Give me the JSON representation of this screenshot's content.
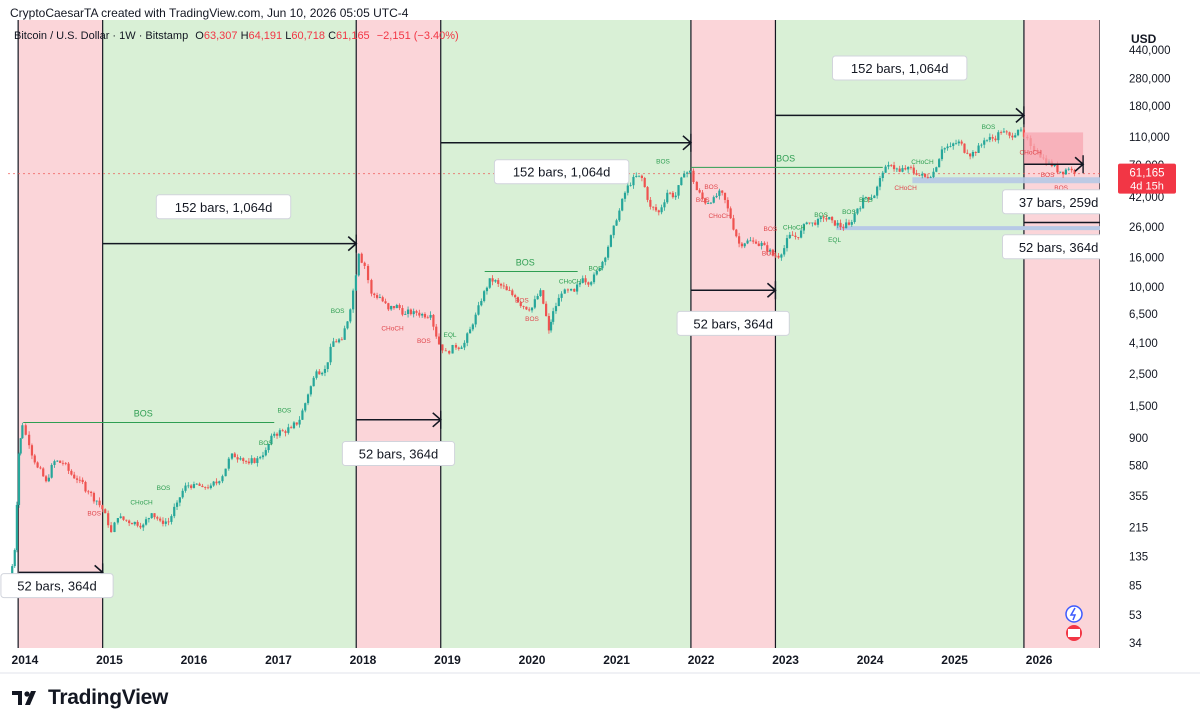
{
  "header": {
    "attribution": "CryptoCaesarTA created with TradingView.com, Jun 10, 2026 05:05 UTC-4"
  },
  "legend": {
    "symbol": "Bitcoin / U.S. Dollar · 1W · Bitstamp",
    "open_label": "O",
    "open": "63,307",
    "high_label": "H",
    "high": "64,191",
    "low_label": "L",
    "low": "60,718",
    "close_label": "C",
    "close": "61,165",
    "change": "−2,151 (−3.40%)"
  },
  "price_axis": {
    "currency": "USD",
    "current_price": "61,165",
    "countdown": "4d 15h"
  },
  "brand": {
    "name": "TradingView"
  },
  "colors": {
    "bull_zone": "#d9f0d6",
    "bear_zone": "#fbd5d9",
    "up_candle": "#26a69a",
    "down_candle": "#ef5350",
    "label_green": "#2e9e52",
    "label_red": "#e0474c",
    "price_tag": "#f23645",
    "eql_line": "#b7c9e6"
  },
  "chart_data": {
    "type": "candlestick",
    "title": "Bitcoin / U.S. Dollar · 1W · Bitstamp",
    "y_scale": "log",
    "y_ticks": [
      34,
      53,
      85,
      135,
      215,
      355,
      580,
      900,
      1500,
      2500,
      4100,
      6500,
      10000,
      16000,
      26000,
      42000,
      70000,
      110000,
      180000,
      280000,
      440000
    ],
    "y_tick_labels": [
      "34",
      "53",
      "85",
      "135",
      "215",
      "355",
      "580",
      "900",
      "1,500",
      "2,500",
      "4,100",
      "6,500",
      "10,000",
      "16,000",
      "26,000",
      "42,000",
      "70,000",
      "110,000",
      "180,000",
      "280,000",
      "440,000"
    ],
    "x_ticks": [
      2014,
      2015,
      2016,
      2017,
      2018,
      2019,
      2020,
      2021,
      2022,
      2023,
      2024,
      2025,
      2026
    ],
    "x_tick_labels": [
      "2014",
      "2015",
      "2016",
      "2017",
      "2018",
      "2019",
      "2020",
      "2021",
      "2022",
      "2023",
      "2024",
      "2025",
      "2026"
    ],
    "x_range": [
      2013.8,
      2026.72
    ],
    "last_price": 61165,
    "zones": [
      {
        "type": "bear",
        "start": 2013.92,
        "end": 2014.92
      },
      {
        "type": "bull",
        "start": 2014.92,
        "end": 2017.92
      },
      {
        "type": "bear",
        "start": 2017.92,
        "end": 2018.92
      },
      {
        "type": "bull",
        "start": 2018.92,
        "end": 2021.88
      },
      {
        "type": "bear",
        "start": 2021.88,
        "end": 2022.88
      },
      {
        "type": "bull",
        "start": 2022.88,
        "end": 2025.82
      },
      {
        "type": "bear",
        "start": 2025.82,
        "end": 2026.72
      }
    ],
    "price_path": [
      [
        2013.82,
        90
      ],
      [
        2013.88,
        150
      ],
      [
        2013.93,
        700
      ],
      [
        2013.97,
        1100
      ],
      [
        2014.05,
        800
      ],
      [
        2014.15,
        560
      ],
      [
        2014.25,
        450
      ],
      [
        2014.35,
        620
      ],
      [
        2014.45,
        600
      ],
      [
        2014.55,
        500
      ],
      [
        2014.65,
        460
      ],
      [
        2014.75,
        380
      ],
      [
        2014.85,
        330
      ],
      [
        2014.95,
        270
      ],
      [
        2015.02,
        200
      ],
      [
        2015.1,
        250
      ],
      [
        2015.2,
        240
      ],
      [
        2015.3,
        235
      ],
      [
        2015.4,
        225
      ],
      [
        2015.5,
        270
      ],
      [
        2015.6,
        240
      ],
      [
        2015.7,
        235
      ],
      [
        2015.8,
        320
      ],
      [
        2015.9,
        420
      ],
      [
        2016.0,
        430
      ],
      [
        2016.1,
        410
      ],
      [
        2016.2,
        420
      ],
      [
        2016.3,
        450
      ],
      [
        2016.45,
        700
      ],
      [
        2016.55,
        650
      ],
      [
        2016.65,
        600
      ],
      [
        2016.75,
        650
      ],
      [
        2016.85,
        740
      ],
      [
        2016.95,
        960
      ],
      [
        2017.05,
        1000
      ],
      [
        2017.15,
        1050
      ],
      [
        2017.25,
        1200
      ],
      [
        2017.35,
        1800
      ],
      [
        2017.45,
        2600
      ],
      [
        2017.55,
        2700
      ],
      [
        2017.65,
        4200
      ],
      [
        2017.75,
        4300
      ],
      [
        2017.85,
        7000
      ],
      [
        2017.95,
        17000
      ],
      [
        2018.02,
        14000
      ],
      [
        2018.1,
        9000
      ],
      [
        2018.2,
        8500
      ],
      [
        2018.3,
        7000
      ],
      [
        2018.4,
        7500
      ],
      [
        2018.5,
        6500
      ],
      [
        2018.6,
        6800
      ],
      [
        2018.7,
        6500
      ],
      [
        2018.8,
        6400
      ],
      [
        2018.9,
        4000
      ],
      [
        2018.98,
        3600
      ],
      [
        2019.1,
        3800
      ],
      [
        2019.2,
        4100
      ],
      [
        2019.3,
        5500
      ],
      [
        2019.4,
        8000
      ],
      [
        2019.5,
        11500
      ],
      [
        2019.6,
        10500
      ],
      [
        2019.7,
        9500
      ],
      [
        2019.8,
        8500
      ],
      [
        2019.9,
        7300
      ],
      [
        2020.0,
        7200
      ],
      [
        2020.1,
        9500
      ],
      [
        2020.2,
        5000
      ],
      [
        2020.25,
        6800
      ],
      [
        2020.35,
        9000
      ],
      [
        2020.5,
        9300
      ],
      [
        2020.6,
        11500
      ],
      [
        2020.7,
        10800
      ],
      [
        2020.8,
        13500
      ],
      [
        2020.9,
        19000
      ],
      [
        2021.0,
        29000
      ],
      [
        2021.1,
        45000
      ],
      [
        2021.2,
        58000
      ],
      [
        2021.3,
        57000
      ],
      [
        2021.4,
        36000
      ],
      [
        2021.5,
        33000
      ],
      [
        2021.6,
        45000
      ],
      [
        2021.7,
        43000
      ],
      [
        2021.8,
        61000
      ],
      [
        2021.87,
        64000
      ],
      [
        2021.95,
        47000
      ],
      [
        2022.05,
        38000
      ],
      [
        2022.15,
        42000
      ],
      [
        2022.25,
        45000
      ],
      [
        2022.35,
        30000
      ],
      [
        2022.45,
        20000
      ],
      [
        2022.55,
        21000
      ],
      [
        2022.65,
        20000
      ],
      [
        2022.75,
        19500
      ],
      [
        2022.85,
        16500
      ],
      [
        2022.95,
        16800
      ],
      [
        2023.05,
        23000
      ],
      [
        2023.15,
        22000
      ],
      [
        2023.25,
        28000
      ],
      [
        2023.35,
        27000
      ],
      [
        2023.45,
        30000
      ],
      [
        2023.55,
        29000
      ],
      [
        2023.65,
        26000
      ],
      [
        2023.75,
        27000
      ],
      [
        2023.85,
        35000
      ],
      [
        2023.95,
        42000
      ],
      [
        2024.05,
        43000
      ],
      [
        2024.15,
        62000
      ],
      [
        2024.25,
        70000
      ],
      [
        2024.35,
        63000
      ],
      [
        2024.45,
        68000
      ],
      [
        2024.55,
        60000
      ],
      [
        2024.65,
        58000
      ],
      [
        2024.75,
        63000
      ],
      [
        2024.85,
        90000
      ],
      [
        2024.95,
        95000
      ],
      [
        2025.05,
        102000
      ],
      [
        2025.15,
        84000
      ],
      [
        2025.25,
        85000
      ],
      [
        2025.35,
        104000
      ],
      [
        2025.45,
        107000
      ],
      [
        2025.55,
        118000
      ],
      [
        2025.65,
        112000
      ],
      [
        2025.75,
        123000
      ],
      [
        2025.82,
        110000
      ],
      [
        2025.9,
        95000
      ],
      [
        2025.98,
        88000
      ],
      [
        2026.05,
        78000
      ],
      [
        2026.15,
        69000
      ],
      [
        2026.25,
        63000
      ],
      [
        2026.35,
        66000
      ],
      [
        2026.42,
        61165
      ]
    ],
    "bos_lines": [
      {
        "start": 2013.98,
        "end": 2016.95,
        "price": 1150,
        "label": "BOS",
        "label_at": 2015.4
      },
      {
        "start": 2019.44,
        "end": 2020.54,
        "price": 12800,
        "label": "BOS",
        "label_at": 2019.92
      },
      {
        "start": 2021.88,
        "end": 2024.15,
        "price": 67500,
        "label": "BOS",
        "label_at": 2023.0
      }
    ],
    "eql_line": {
      "start": 2023.6,
      "end": 2026.72,
      "price": 25600,
      "label": "EQL"
    },
    "current_price_dash": {
      "start": 2013.8,
      "end": 2026.72,
      "price": 61165
    },
    "support_band": {
      "start": 2024.5,
      "end": 2026.72,
      "price": 55000
    },
    "small_labels": [
      {
        "text": "BOS",
        "x": 2014.82,
        "price": 260,
        "color": "red"
      },
      {
        "text": "CHoCH",
        "x": 2015.38,
        "price": 310,
        "color": "green"
      },
      {
        "text": "BOS",
        "x": 2015.64,
        "price": 390,
        "color": "green"
      },
      {
        "text": "BOS",
        "x": 2016.85,
        "price": 800,
        "color": "green"
      },
      {
        "text": "BOS",
        "x": 2017.07,
        "price": 1350,
        "color": "green"
      },
      {
        "text": "BOS",
        "x": 2017.7,
        "price": 6600,
        "color": "green"
      },
      {
        "text": "CHoCH",
        "x": 2018.35,
        "price": 5000,
        "color": "red"
      },
      {
        "text": "BOS",
        "x": 2018.72,
        "price": 4100,
        "color": "red"
      },
      {
        "text": "EQL",
        "x": 2019.03,
        "price": 4500,
        "color": "green"
      },
      {
        "text": "CHoCH",
        "x": 2020.45,
        "price": 10600,
        "color": "green"
      },
      {
        "text": "BOS",
        "x": 2020.75,
        "price": 13000,
        "color": "green"
      },
      {
        "text": "BOS",
        "x": 2019.88,
        "price": 7800,
        "color": "red"
      },
      {
        "text": "BOS",
        "x": 2020.0,
        "price": 5800,
        "color": "red"
      },
      {
        "text": "BOS",
        "x": 2021.55,
        "price": 72000,
        "color": "green"
      },
      {
        "text": "BOS",
        "x": 2022.12,
        "price": 48000,
        "color": "red"
      },
      {
        "text": "BOS",
        "x": 2022.02,
        "price": 39000,
        "color": "red"
      },
      {
        "text": "CHoCH",
        "x": 2022.22,
        "price": 30000,
        "color": "red"
      },
      {
        "text": "BOS",
        "x": 2022.8,
        "price": 16500,
        "color": "red"
      },
      {
        "text": "BOS",
        "x": 2022.82,
        "price": 24500,
        "color": "red"
      },
      {
        "text": "CHoCH",
        "x": 2023.1,
        "price": 25000,
        "color": "green"
      },
      {
        "text": "BOS",
        "x": 2023.42,
        "price": 30500,
        "color": "green"
      },
      {
        "text": "BOS",
        "x": 2023.75,
        "price": 32000,
        "color": "green"
      },
      {
        "text": "EQL",
        "x": 2023.58,
        "price": 20500,
        "color": "green"
      },
      {
        "text": "BOS",
        "x": 2023.95,
        "price": 39000,
        "color": "green"
      },
      {
        "text": "CHoCH",
        "x": 2024.62,
        "price": 71000,
        "color": "green"
      },
      {
        "text": "CHoCH",
        "x": 2024.42,
        "price": 47000,
        "color": "red"
      },
      {
        "text": "BOS",
        "x": 2025.4,
        "price": 125000,
        "color": "green"
      },
      {
        "text": "CHoCH",
        "x": 2025.9,
        "price": 83000,
        "color": "red"
      },
      {
        "text": "BOS",
        "x": 2026.1,
        "price": 58000,
        "color": "red"
      },
      {
        "text": "BOS",
        "x": 2026.26,
        "price": 47000,
        "color": "red"
      }
    ],
    "annotations": [
      {
        "text": "52 bars, 364d",
        "from": 2013.93,
        "to": 2014.92,
        "price": 105,
        "label_x": 2014.38,
        "label_price": 85
      },
      {
        "text": "152 bars, 1,064d",
        "from": 2014.92,
        "to": 2017.92,
        "price": 20000,
        "label_x": 2016.35,
        "label_price": 36000
      },
      {
        "text": "52 bars, 364d",
        "from": 2017.92,
        "to": 2018.92,
        "price": 1200,
        "label_x": 2018.42,
        "label_price": 700
      },
      {
        "text": "152 bars, 1,064d",
        "from": 2018.92,
        "to": 2021.88,
        "price": 100000,
        "label_x": 2020.35,
        "label_price": 63000
      },
      {
        "text": "52 bars, 364d",
        "from": 2021.88,
        "to": 2022.88,
        "price": 9500,
        "label_x": 2022.38,
        "label_price": 5600
      },
      {
        "text": "152 bars, 1,064d",
        "from": 2022.88,
        "to": 2025.82,
        "price": 155000,
        "label_x": 2024.35,
        "label_price": 330000
      },
      {
        "text": "37 bars, 259d",
        "from": 2025.82,
        "to": 2026.52,
        "price": 71000,
        "label_x": 2026.23,
        "label_price": 39000
      },
      {
        "text": "52 bars, 364d",
        "from": 2025.82,
        "to": 2026.82,
        "price": 28000,
        "label_x": 2026.23,
        "label_price": 19000
      }
    ],
    "highlight_box": {
      "from": 2025.82,
      "to": 2026.52,
      "low": 71000,
      "high": 118000
    }
  }
}
